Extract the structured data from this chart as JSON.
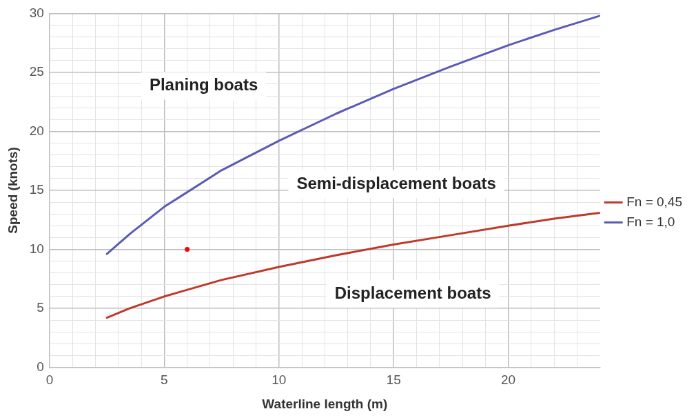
{
  "chart_data": {
    "type": "line",
    "xlabel": "Waterline length (m)",
    "ylabel": "Speed (knots)",
    "xlim": [
      0,
      24
    ],
    "ylim": [
      0,
      30
    ],
    "xticks": [
      0,
      {
        "value": 1,
        "label": null
      },
      {
        "value": 2,
        "label": null
      },
      {
        "value": 3,
        "label": null
      },
      {
        "value": 4,
        "label": null
      },
      5,
      {
        "value": 6,
        "label": null
      },
      {
        "value": 7,
        "label": null
      },
      {
        "value": 8,
        "label": null
      },
      {
        "value": 9,
        "label": null
      },
      10,
      {
        "value": 11,
        "label": null
      },
      {
        "value": 12,
        "label": null
      },
      {
        "value": 13,
        "label": null
      },
      {
        "value": 14,
        "label": null
      },
      15,
      {
        "value": 16,
        "label": null
      },
      {
        "value": 17,
        "label": null
      },
      {
        "value": 18,
        "label": null
      },
      {
        "value": 19,
        "label": null
      },
      20,
      {
        "value": 21,
        "label": null
      },
      {
        "value": 22,
        "label": null
      },
      {
        "value": 23,
        "label": null
      }
    ],
    "yticks": [
      0,
      {
        "value": 1,
        "label": null
      },
      {
        "value": 2,
        "label": null
      },
      {
        "value": 3,
        "label": null
      },
      {
        "value": 4,
        "label": null
      },
      5,
      {
        "value": 6,
        "label": null
      },
      {
        "value": 7,
        "label": null
      },
      {
        "value": 8,
        "label": null
      },
      {
        "value": 9,
        "label": null
      },
      10,
      {
        "value": 11,
        "label": null
      },
      {
        "value": 12,
        "label": null
      },
      {
        "value": 13,
        "label": null
      },
      {
        "value": 14,
        "label": null
      },
      15,
      {
        "value": 16,
        "label": null
      },
      {
        "value": 17,
        "label": null
      },
      {
        "value": 18,
        "label": null
      },
      {
        "value": 19,
        "label": null
      },
      20,
      {
        "value": 21,
        "label": null
      },
      {
        "value": 22,
        "label": null
      },
      {
        "value": 23,
        "label": null
      },
      {
        "value": 24,
        "label": null
      },
      25,
      {
        "value": 26,
        "label": null
      },
      {
        "value": 27,
        "label": null
      },
      {
        "value": 28,
        "label": null
      },
      {
        "value": 29,
        "label": null
      },
      30
    ],
    "grid": true,
    "legend": "right",
    "marker": "none",
    "line_style": "solid",
    "series": [
      {
        "name": "Fn = 0,45",
        "color": "#c0392b",
        "x": [
          2.5,
          3.5,
          5,
          7.5,
          10,
          12.5,
          15,
          17.5,
          20,
          22,
          24
        ],
        "values": [
          4.2,
          5.0,
          6.0,
          7.4,
          8.5,
          9.5,
          10.4,
          11.2,
          12.0,
          12.6,
          13.1
        ]
      },
      {
        "name": "Fn = 1,0",
        "color": "#5b5bb5",
        "x": [
          2.5,
          3.5,
          5,
          7.5,
          10,
          12.5,
          15,
          17.5,
          20,
          22,
          24
        ],
        "values": [
          9.6,
          11.3,
          13.6,
          16.7,
          19.2,
          21.5,
          23.6,
          25.5,
          27.3,
          28.6,
          29.8
        ]
      },
      {
        "type": "scatter",
        "marker": "circle",
        "color": "#ff0000",
        "x": [
          6
        ],
        "values": [
          10
        ]
      }
    ],
    "annotations": [
      "Planing boats",
      "Semi-displacement boats",
      "Displacement boats"
    ]
  }
}
